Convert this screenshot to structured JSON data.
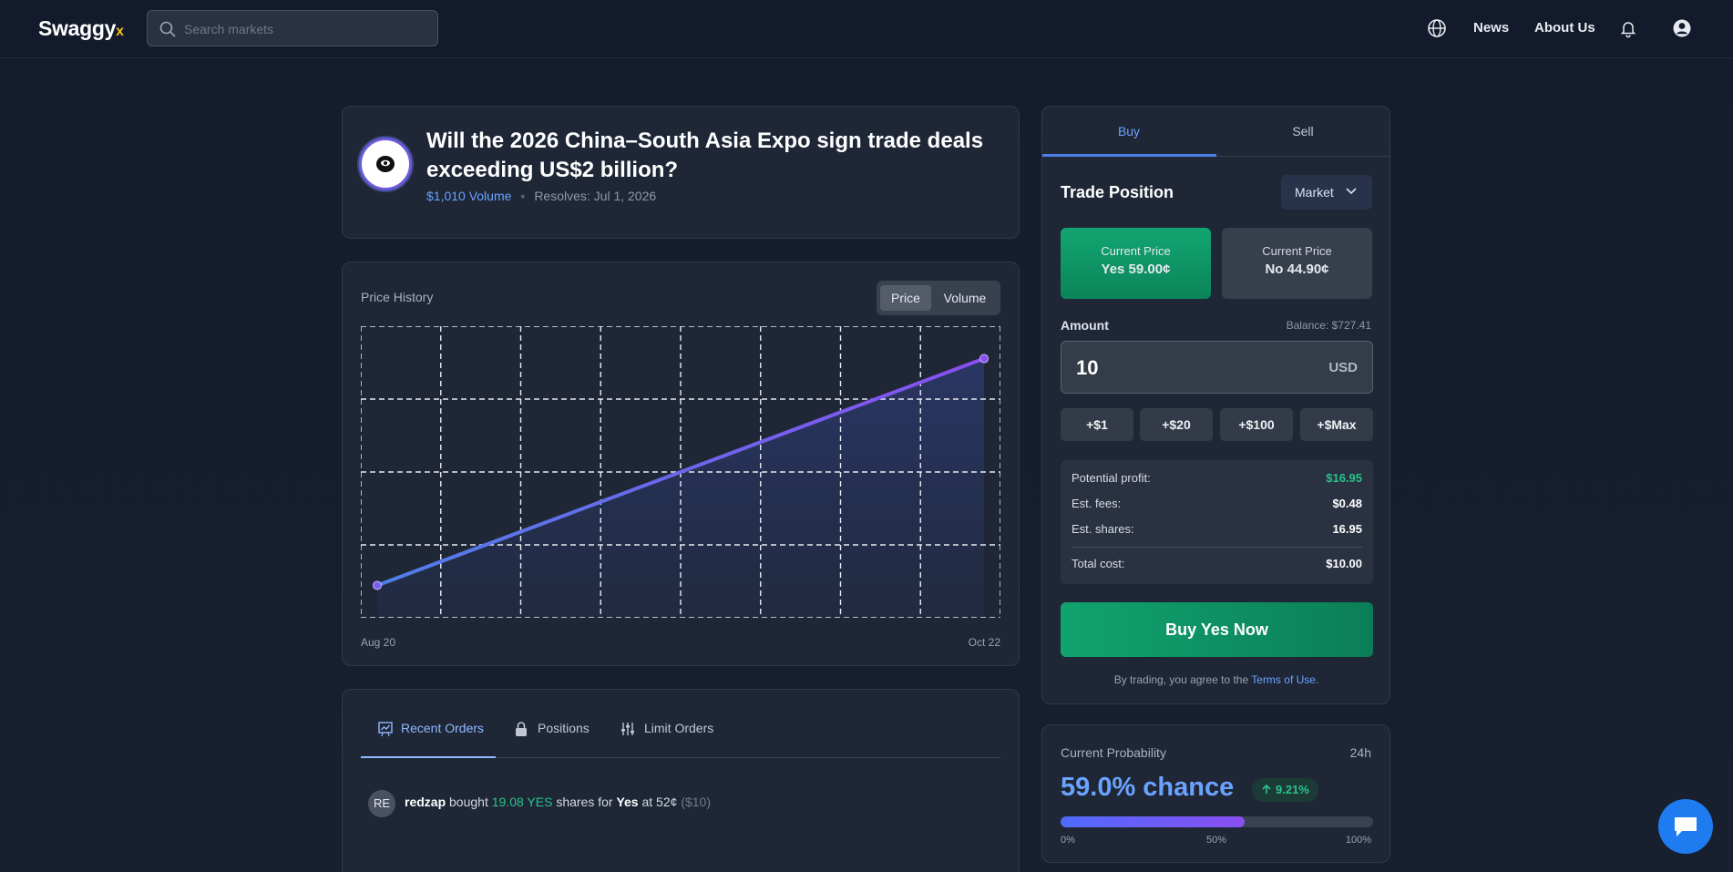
{
  "header": {
    "logo_text": "Swaggy",
    "logo_suffix": "x",
    "search_placeholder": "Search markets",
    "nav": {
      "news": "News",
      "about": "About Us"
    },
    "icons": [
      "globe-icon",
      "bell-icon",
      "user-icon"
    ]
  },
  "market": {
    "title": "Will the 2026 China–South Asia Expo sign trade deals exceeding US$2 billion?",
    "volume": "$1,010 Volume",
    "resolves": "Resolves: Jul 1, 2026"
  },
  "chart": {
    "label": "Price History",
    "toggle": {
      "price": "Price",
      "volume": "Volume",
      "active": "Price"
    },
    "x_start": "Aug 20",
    "x_end": "Oct 22"
  },
  "chart_data": {
    "type": "area",
    "x": [
      "Aug 20",
      "Oct 22"
    ],
    "y": [
      52,
      59
    ],
    "grid": true,
    "colors": {
      "line": "#5b6bf5",
      "fill": "#2b3a6e"
    }
  },
  "orders": {
    "tabs": [
      "Recent Orders",
      "Positions",
      "Limit Orders"
    ],
    "active_tab": "Recent Orders",
    "items": [
      {
        "avatar": "RE",
        "user": "redzap",
        "action": "bought",
        "shares": "19.08 YES",
        "mid": "shares for",
        "side": "Yes",
        "at": "at 52¢",
        "amount": "($10)"
      }
    ]
  },
  "trade": {
    "tabs": {
      "buy": "Buy",
      "sell": "Sell"
    },
    "title": "Trade Position",
    "order_type": "Market",
    "yes": {
      "label": "Current Price",
      "value": "Yes 59.00¢"
    },
    "no": {
      "label": "Current Price",
      "value": "No 44.90¢"
    },
    "amount_label": "Amount",
    "balance": "Balance: $727.41",
    "amount_value": "10",
    "currency": "USD",
    "quick": [
      "+$1",
      "+$20",
      "+$100",
      "+$Max"
    ],
    "summary": {
      "profit_label": "Potential profit:",
      "profit": "$16.95",
      "fees_label": "Est. fees:",
      "fees": "$0.48",
      "shares_label": "Est. shares:",
      "shares": "16.95",
      "total_label": "Total cost:",
      "total": "$10.00"
    },
    "buy_button": "Buy Yes Now",
    "terms_prefix": "By trading, you agree to the",
    "terms_link": "Terms of Use",
    "terms_suffix": "."
  },
  "probability": {
    "label": "Current Probability",
    "period": "24h",
    "value": "59.0% chance",
    "change": "9.21%",
    "fraction": 0.59,
    "scale": [
      "0%",
      "50%",
      "100%"
    ]
  },
  "colors": {
    "accent": "#6aa3ff",
    "yes": "#11a36f",
    "gain": "#28c48a",
    "brand_x": "#f2c21b"
  }
}
